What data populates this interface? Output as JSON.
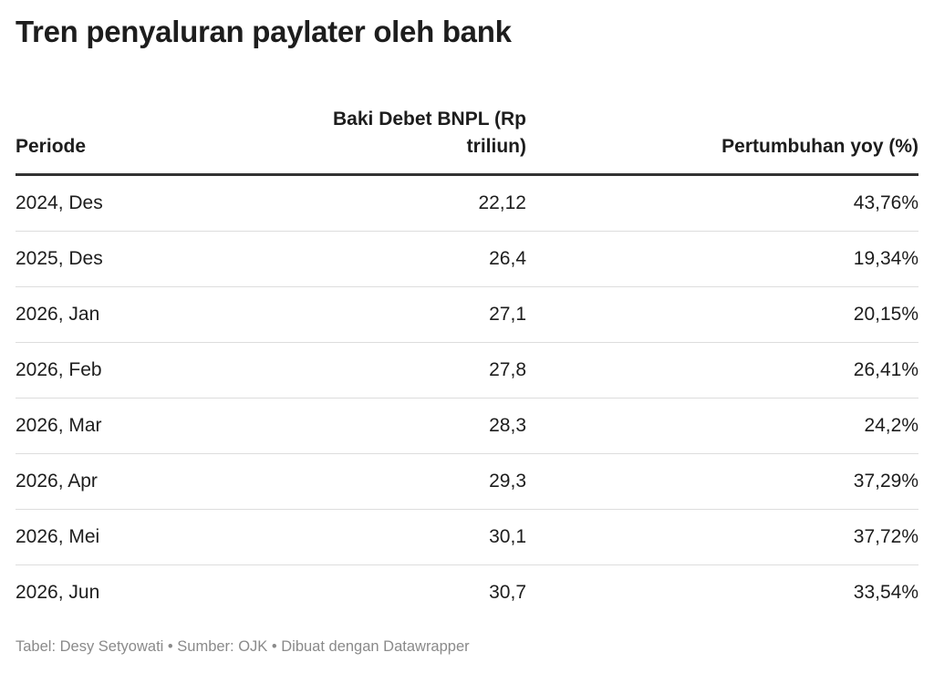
{
  "title": "Tren penyaluran paylater oleh bank",
  "table": {
    "headers": [
      "Periode",
      "Baki Debet BNPL (Rp triliun)",
      "Pertumbuhan yoy (%)"
    ],
    "rows": [
      [
        "2024, Des",
        "22,12",
        "43,76%"
      ],
      [
        "2025, Des",
        "26,4",
        "19,34%"
      ],
      [
        "2026, Jan",
        "27,1",
        "20,15%"
      ],
      [
        "2026, Feb",
        "27,8",
        "26,41%"
      ],
      [
        "2026, Mar",
        "28,3",
        "24,2%"
      ],
      [
        "2026, Apr",
        "29,3",
        "37,29%"
      ],
      [
        "2026, Mei",
        "30,1",
        "37,72%"
      ],
      [
        "2026, Jun",
        "30,7",
        "33,54%"
      ]
    ]
  },
  "footer": "Tabel: Desy Setyowati • Sumber: OJK • Dibuat dengan Datawrapper"
}
